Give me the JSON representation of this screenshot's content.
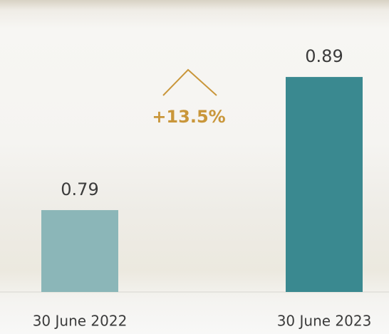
{
  "chart_data": {
    "type": "bar",
    "categories": [
      "30 June 2022",
      "30 June 2023"
    ],
    "values": [
      0.79,
      0.89
    ],
    "colors": [
      "#8bb6b8",
      "#3a8990"
    ],
    "ylim": [
      0.7285,
      0.92
    ],
    "annotation": "+13.5%",
    "annotation_color": "#c9963a",
    "grid": false
  }
}
